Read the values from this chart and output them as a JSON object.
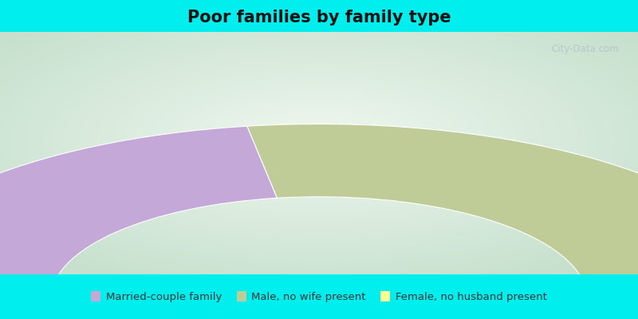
{
  "title": "Poor families by family type",
  "title_fontsize": 15,
  "bg_cyan": "#00EEEE",
  "segments": [
    {
      "label": "Married-couple family",
      "value": 45,
      "color": "#c4a8d8"
    },
    {
      "label": "Male, no wife present",
      "value": 50,
      "color": "#c0cc98"
    },
    {
      "label": "Female, no husband present",
      "value": 5,
      "color": "#fffe90"
    }
  ],
  "legend_fontsize": 9.5,
  "watermark": "City-Data.com",
  "chart_bg_center": "#f5f8f0",
  "chart_bg_edge": "#c8ddc8",
  "title_bar_height": 0.1,
  "legend_bar_height": 0.14
}
